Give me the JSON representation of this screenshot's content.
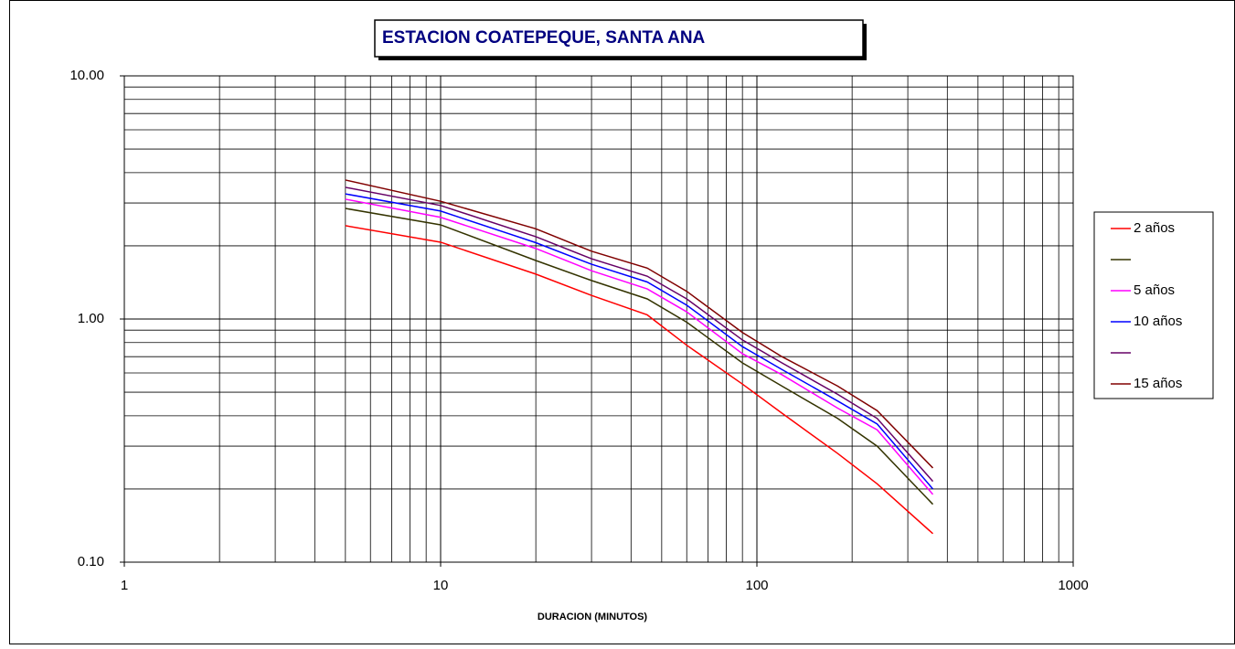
{
  "chart_data": {
    "type": "line",
    "title": "ESTACION COATEPEQUE, SANTA ANA",
    "x_label": "DURACION (MINUTOS)",
    "x": [
      5,
      10,
      20,
      30,
      45,
      60,
      90,
      120,
      180,
      240,
      360
    ],
    "log_x": true,
    "log_y": true,
    "grid": true,
    "xlim": [
      1,
      1000
    ],
    "xticks": [
      1,
      10,
      100,
      1000
    ],
    "ylim": [
      0.1,
      10
    ],
    "yticks": [
      {
        "value": 0.1,
        "label": "0.10"
      },
      {
        "value": 1,
        "label": "1.00"
      },
      {
        "value": 10,
        "label": "10.00"
      }
    ],
    "legend": "right",
    "series": [
      {
        "name": "2 años",
        "color": "#ff0000",
        "values": [
          2.42,
          2.07,
          1.53,
          1.25,
          1.04,
          0.78,
          0.54,
          0.41,
          0.28,
          0.21,
          0.131
        ]
      },
      {
        "color": "#333300",
        "values": [
          2.85,
          2.44,
          1.74,
          1.44,
          1.21,
          0.97,
          0.66,
          0.53,
          0.39,
          0.3,
          0.173
        ]
      },
      {
        "name": "5 años",
        "color": "#ff00ff",
        "values": [
          3.11,
          2.62,
          1.95,
          1.58,
          1.33,
          1.07,
          0.72,
          0.59,
          0.43,
          0.35,
          0.19
        ]
      },
      {
        "name": "10 años",
        "color": "#0000ff",
        "values": [
          3.27,
          2.78,
          2.06,
          1.68,
          1.42,
          1.14,
          0.77,
          0.62,
          0.46,
          0.37,
          0.2
        ]
      },
      {
        "color": "#660066",
        "values": [
          3.48,
          2.93,
          2.18,
          1.77,
          1.5,
          1.21,
          0.82,
          0.66,
          0.49,
          0.39,
          0.215
        ]
      },
      {
        "name": "15 años",
        "color": "#800000",
        "values": [
          3.73,
          3.05,
          2.35,
          1.9,
          1.62,
          1.3,
          0.88,
          0.7,
          0.53,
          0.42,
          0.244
        ]
      }
    ]
  }
}
